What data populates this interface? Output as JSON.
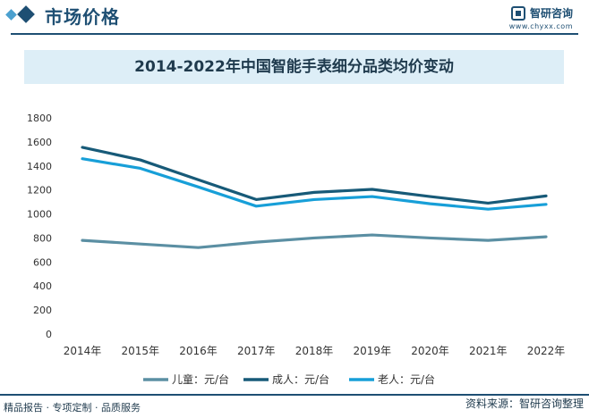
{
  "header": {
    "section_title": "市场价格",
    "brand_name": "智研咨询",
    "brand_url": "www.chyxx.com"
  },
  "chart_data": {
    "type": "line",
    "title": "2014-2022年中国智能手表细分品类均价变动",
    "categories": [
      "2014年",
      "2015年",
      "2016年",
      "2017年",
      "2018年",
      "2019年",
      "2020年",
      "2021年",
      "2022年"
    ],
    "ylim": [
      0,
      1800
    ],
    "yticks": [
      0,
      200,
      400,
      600,
      800,
      1000,
      1200,
      1400,
      1600,
      1800
    ],
    "grid": false,
    "legend_position": "bottom",
    "series": [
      {
        "name": "儿童：元/台",
        "color": "#5b8fa3",
        "values": [
          780,
          750,
          720,
          765,
          800,
          825,
          800,
          780,
          810
        ]
      },
      {
        "name": "成人：元/台",
        "color": "#175a78",
        "values": [
          1555,
          1450,
          1285,
          1120,
          1180,
          1205,
          1145,
          1090,
          1150
        ]
      },
      {
        "name": "老人：元/台",
        "color": "#179fd8",
        "values": [
          1460,
          1380,
          1225,
          1065,
          1120,
          1145,
          1085,
          1040,
          1080
        ]
      }
    ]
  },
  "footer": {
    "left_text": "精品报告 · 专项定制 · 品质服务",
    "right_text": "资料来源：智研咨询整理"
  }
}
